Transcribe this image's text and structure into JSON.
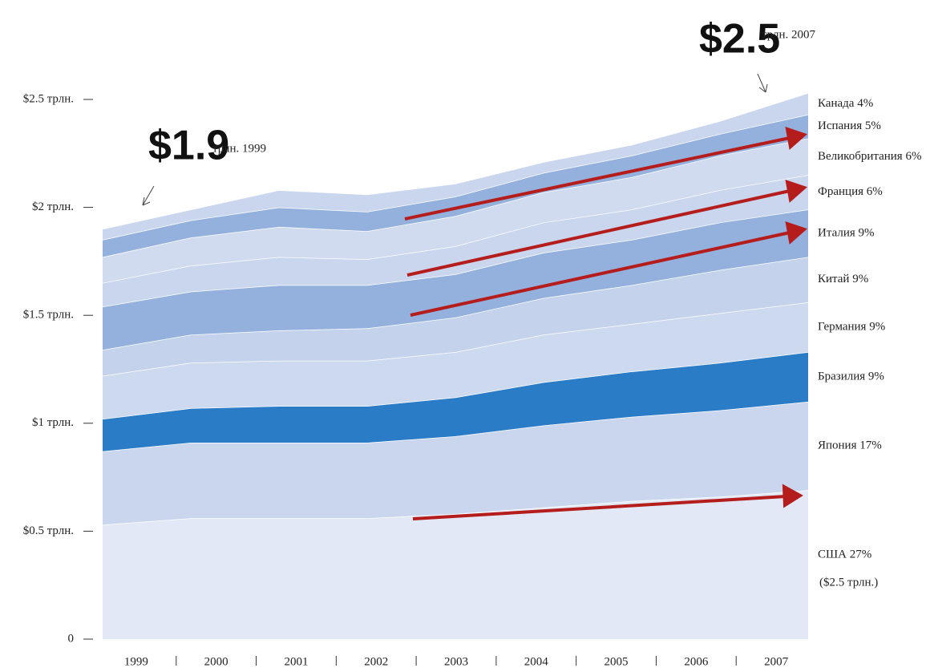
{
  "chart_data": {
    "type": "stacked-area",
    "categories": [
      "1999",
      "2000",
      "2001",
      "2002",
      "2003",
      "2004",
      "2005",
      "2006",
      "2007"
    ],
    "series": [
      {
        "name": "США 27%",
        "color": "#e2e8f5",
        "values": [
          0.53,
          0.56,
          0.56,
          0.56,
          0.58,
          0.61,
          0.64,
          0.66,
          0.69
        ]
      },
      {
        "name": "Япония 17%",
        "color": "#c9d6ee",
        "values": [
          0.34,
          0.35,
          0.35,
          0.35,
          0.36,
          0.38,
          0.39,
          0.4,
          0.41
        ]
      },
      {
        "name": "Бразилия 9%",
        "color": "#2b7cc7",
        "values": [
          0.15,
          0.16,
          0.17,
          0.17,
          0.18,
          0.2,
          0.21,
          0.22,
          0.23
        ]
      },
      {
        "name": "Германия 9%",
        "color": "#cdd9ef",
        "values": [
          0.2,
          0.21,
          0.21,
          0.21,
          0.21,
          0.22,
          0.22,
          0.23,
          0.23
        ]
      },
      {
        "name": "Китай 9%",
        "color": "#c4d2ec",
        "values": [
          0.12,
          0.13,
          0.14,
          0.15,
          0.16,
          0.17,
          0.18,
          0.2,
          0.21
        ]
      },
      {
        "name": "Италия 9%",
        "color": "#94b1de",
        "values": [
          0.2,
          0.2,
          0.21,
          0.2,
          0.2,
          0.21,
          0.21,
          0.22,
          0.22
        ]
      },
      {
        "name": "Франция 6%",
        "color": "#c9d6ee",
        "values": [
          0.11,
          0.12,
          0.13,
          0.12,
          0.13,
          0.14,
          0.14,
          0.15,
          0.16
        ]
      },
      {
        "name": "Великобритания 6%",
        "color": "#d0dbf0",
        "values": [
          0.12,
          0.13,
          0.14,
          0.13,
          0.14,
          0.14,
          0.15,
          0.16,
          0.17
        ]
      },
      {
        "name": "Испания 5%",
        "color": "#94b1de",
        "values": [
          0.08,
          0.08,
          0.09,
          0.09,
          0.09,
          0.09,
          0.1,
          0.1,
          0.11
        ]
      },
      {
        "name": "Канада 4%",
        "color": "#c9d6ee",
        "values": [
          0.05,
          0.05,
          0.08,
          0.08,
          0.06,
          0.05,
          0.05,
          0.06,
          0.1
        ]
      }
    ],
    "annotations": [
      "($2.5 трлн.)",
      "$1.9",
      "трлн. 1999",
      "$2.5",
      "трлн. 2007"
    ],
    "ylim": [
      0,
      2.5
    ],
    "yticks": [
      0,
      {
        "value": 0.5,
        "label": "$0.5 трлн."
      },
      {
        "value": 1,
        "label": "$1 трлн."
      },
      {
        "value": 1.5,
        "label": "$1.5 трлн."
      },
      {
        "value": 2,
        "label": "$2 трлн."
      },
      {
        "value": 2.5,
        "label": "$2.5 трлн."
      }
    ]
  }
}
